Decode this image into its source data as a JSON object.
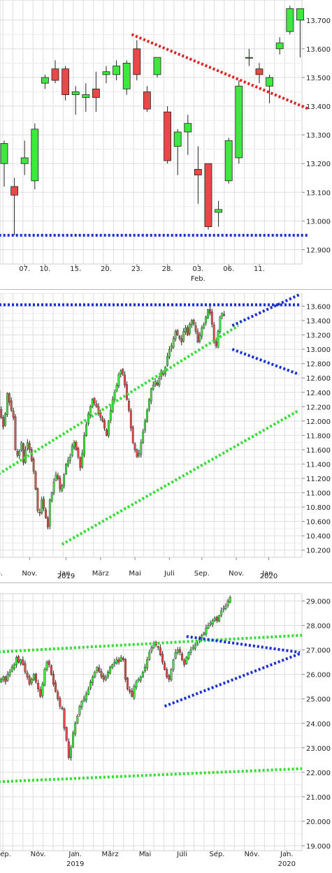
{
  "chart_data": [
    {
      "type": "candlestick",
      "title": "",
      "ylim": [
        12850,
        13770
      ],
      "y_ticks": [
        "12.900",
        "13.000",
        "13.100",
        "13.200",
        "13.300",
        "13.400",
        "13.500",
        "13.600",
        "13.700"
      ],
      "y_tick_values": [
        12900,
        13000,
        13100,
        13200,
        13300,
        13400,
        13500,
        13600,
        13700
      ],
      "x_tick_labels": [
        "07.",
        "10.",
        "15.",
        "20.",
        "23.",
        "28.",
        "03.",
        "06.",
        "11."
      ],
      "x_tick_index": [
        2,
        4,
        7,
        10,
        13,
        16,
        19,
        22,
        25
      ],
      "x_sublabels": [
        {
          "text": "Feb.",
          "index": 19
        }
      ],
      "candles": [
        {
          "o": 13200,
          "h": 13280,
          "l": 13120,
          "c": 13270
        },
        {
          "o": 13120,
          "h": 13150,
          "l": 12950,
          "c": 13090
        },
        {
          "o": 13200,
          "h": 13280,
          "l": 13160,
          "c": 13220
        },
        {
          "o": 13140,
          "h": 13340,
          "l": 13110,
          "c": 13320
        },
        {
          "o": 13480,
          "h": 13510,
          "l": 13460,
          "c": 13500
        },
        {
          "o": 13530,
          "h": 13560,
          "l": 13480,
          "c": 13490
        },
        {
          "o": 13530,
          "h": 13540,
          "l": 13420,
          "c": 13440
        },
        {
          "o": 13440,
          "h": 13470,
          "l": 13370,
          "c": 13450
        },
        {
          "o": 13430,
          "h": 13480,
          "l": 13380,
          "c": 13440
        },
        {
          "o": 13460,
          "h": 13520,
          "l": 13380,
          "c": 13430
        },
        {
          "o": 13510,
          "h": 13540,
          "l": 13480,
          "c": 13520
        },
        {
          "o": 13510,
          "h": 13560,
          "l": 13490,
          "c": 13540
        },
        {
          "o": 13460,
          "h": 13560,
          "l": 13440,
          "c": 13550
        },
        {
          "o": 13600,
          "h": 13630,
          "l": 13490,
          "c": 13510
        },
        {
          "o": 13450,
          "h": 13470,
          "l": 13380,
          "c": 13390
        },
        {
          "o": 13510,
          "h": 13570,
          "l": 13500,
          "c": 13570
        },
        {
          "o": 13380,
          "h": 13400,
          "l": 13200,
          "c": 13210
        },
        {
          "o": 13260,
          "h": 13320,
          "l": 13160,
          "c": 13310
        },
        {
          "o": 13310,
          "h": 13370,
          "l": 13230,
          "c": 13340
        },
        {
          "o": 13180,
          "h": 13260,
          "l": 13060,
          "c": 13160
        },
        {
          "o": 13200,
          "h": 13200,
          "l": 12970,
          "c": 12980
        },
        {
          "o": 13030,
          "h": 13070,
          "l": 12980,
          "c": 13040
        },
        {
          "o": 13140,
          "h": 13290,
          "l": 13130,
          "c": 13280
        },
        {
          "o": 13220,
          "h": 13490,
          "l": 13200,
          "c": 13470
        },
        {
          "o": 13570,
          "h": 13600,
          "l": 13540,
          "c": 13570
        },
        {
          "o": 13530,
          "h": 13550,
          "l": 13480,
          "c": 13510
        },
        {
          "o": 13470,
          "h": 13510,
          "l": 13410,
          "c": 13500
        },
        {
          "o": 13600,
          "h": 13640,
          "l": 13580,
          "c": 13620
        },
        {
          "o": 13660,
          "h": 13750,
          "l": 13650,
          "c": 13740
        },
        {
          "o": 13700,
          "h": 13740,
          "l": 13570,
          "c": 13740
        }
      ],
      "trendlines": [
        {
          "color": "#e02020",
          "points": [
            [
              12.5,
              13650
            ],
            [
              31,
              13390
            ]
          ]
        },
        {
          "color": "#1a2fd0",
          "points": [
            [
              -0.5,
              12950
            ],
            [
              31,
              12950
            ]
          ]
        }
      ]
    },
    {
      "type": "candlestick",
      "title": "",
      "ylim": [
        10100,
        13780
      ],
      "y_ticks": [
        "10.200",
        "10.400",
        "10.600",
        "10.800",
        "11.000",
        "11.200",
        "11.400",
        "11.600",
        "11.800",
        "12.000",
        "12.200",
        "12.400",
        "12.600",
        "12.800",
        "13.000",
        "13.200",
        "13.400",
        "13.600"
      ],
      "y_tick_values": [
        10200,
        10400,
        10600,
        10800,
        11000,
        11200,
        11400,
        11600,
        11800,
        12000,
        12200,
        12400,
        12600,
        12800,
        13000,
        13200,
        13400,
        13600
      ],
      "x_tick_labels": [
        "Sep.",
        "Nov.",
        "Jan.",
        "März",
        "Mai",
        "Juli",
        "Sep.",
        "Nov.",
        "Jan."
      ],
      "x_tick_index": [
        0,
        17,
        35,
        52,
        69,
        86,
        102,
        119,
        135
      ],
      "x_sublabels": [
        {
          "text": "2019",
          "index": 35
        },
        {
          "text": "2020",
          "index": 135
        }
      ],
      "closes": [
        12300,
        12420,
        12180,
        12050,
        11920,
        12100,
        12380,
        12260,
        12150,
        12050,
        11600,
        11520,
        11580,
        11700,
        11420,
        11600,
        11700,
        11600,
        11450,
        11300,
        11050,
        10750,
        10720,
        10900,
        10780,
        10650,
        10520,
        10900,
        11000,
        11150,
        11250,
        11200,
        11050,
        11100,
        11250,
        11400,
        11450,
        11500,
        11650,
        11700,
        11600,
        11500,
        11350,
        11550,
        11800,
        11950,
        12100,
        12200,
        12300,
        12250,
        12200,
        12100,
        12050,
        12000,
        11900,
        11800,
        12000,
        12150,
        12300,
        12400,
        12500,
        12650,
        12700,
        12650,
        12500,
        12300,
        12150,
        11900,
        11700,
        11600,
        11500,
        11550,
        11700,
        11850,
        12000,
        12150,
        12300,
        12450,
        12500,
        12550,
        12500,
        12600,
        12700,
        12650,
        12750,
        12900,
        13000,
        13050,
        13150,
        13250,
        13200,
        13150,
        13100,
        13250,
        13300,
        13200,
        13350,
        13400,
        13350,
        13250,
        13100,
        13200,
        13300,
        13350,
        13450,
        13550,
        13500,
        13350,
        13100,
        13050,
        13250,
        13450,
        13500,
        13480
      ],
      "trendlines": [
        {
          "color": "#33dd33",
          "points": [
            [
              0,
              11230
            ],
            [
              120,
              13330
            ]
          ]
        },
        {
          "color": "#33dd33",
          "points": [
            [
              33,
              10280
            ],
            [
              150,
              12150
            ]
          ]
        },
        {
          "color": "#1a2fd0",
          "points": [
            [
              0,
              13620
            ],
            [
              150,
              13620
            ]
          ]
        },
        {
          "color": "#1a2fd0",
          "points": [
            [
              117,
              13330
            ],
            [
              150,
              13760
            ]
          ]
        },
        {
          "color": "#1a2fd0",
          "points": [
            [
              117,
              13000
            ],
            [
              150,
              12650
            ]
          ]
        }
      ]
    },
    {
      "type": "candlestick",
      "title": "",
      "ylim": [
        18800,
        29300
      ],
      "y_ticks": [
        "19.000",
        "20.000",
        "21.000",
        "22.000",
        "23.000",
        "24.000",
        "25.000",
        "26.000",
        "27.000",
        "28.000",
        "29.000"
      ],
      "y_tick_values": [
        19000,
        20000,
        21000,
        22000,
        23000,
        24000,
        25000,
        26000,
        27000,
        28000,
        29000
      ],
      "x_tick_labels": [
        "Sep.",
        "Nov.",
        "Jan.",
        "März",
        "Mai",
        "Juli",
        "Sep.",
        "Nov.",
        "Jan."
      ],
      "x_tick_index": [
        6,
        22,
        39,
        55,
        71,
        88,
        104,
        120,
        136
      ],
      "x_sublabels": [
        {
          "text": "2019",
          "index": 39
        },
        {
          "text": "2020",
          "index": 136
        }
      ],
      "closes": [
        25500,
        25400,
        25600,
        25450,
        25650,
        25800,
        25900,
        25700,
        26000,
        26100,
        26300,
        26400,
        26700,
        26500,
        26600,
        26400,
        26100,
        25900,
        25600,
        25800,
        26000,
        25700,
        25400,
        25100,
        25600,
        26200,
        26500,
        26400,
        26000,
        25600,
        25300,
        25000,
        24700,
        24600,
        23800,
        23300,
        22600,
        23000,
        23600,
        24000,
        24300,
        24700,
        24900,
        25000,
        25200,
        25400,
        25700,
        25900,
        26100,
        26300,
        26100,
        25900,
        25800,
        25900,
        26100,
        26300,
        26400,
        26500,
        26600,
        26500,
        26700,
        26600,
        25800,
        25400,
        25300,
        25100,
        25500,
        25700,
        25800,
        25900,
        26100,
        26300,
        26600,
        26900,
        27100,
        27300,
        27200,
        27100,
        26800,
        26500,
        26200,
        25900,
        25800,
        26200,
        26600,
        26900,
        27000,
        26900,
        26600,
        26400,
        26700,
        26900,
        27000,
        27100,
        27200,
        27300,
        27500,
        27600,
        27700,
        27900,
        28000,
        28100,
        28200,
        28300,
        28200,
        28400,
        28600,
        28700,
        28800,
        29000,
        29150
      ],
      "trendlines": [
        {
          "color": "#33dd33",
          "points": [
            [
              0,
              26900
            ],
            [
              143,
              27600
            ]
          ]
        },
        {
          "color": "#33dd33",
          "points": [
            [
              0,
              21600
            ],
            [
              143,
              22150
            ]
          ]
        },
        {
          "color": "#1a2fd0",
          "points": [
            [
              80,
              24700
            ],
            [
              142,
              26850
            ]
          ]
        },
        {
          "color": "#1a2fd0",
          "points": [
            [
              90,
              27550
            ],
            [
              142,
              26900
            ]
          ]
        }
      ]
    }
  ]
}
